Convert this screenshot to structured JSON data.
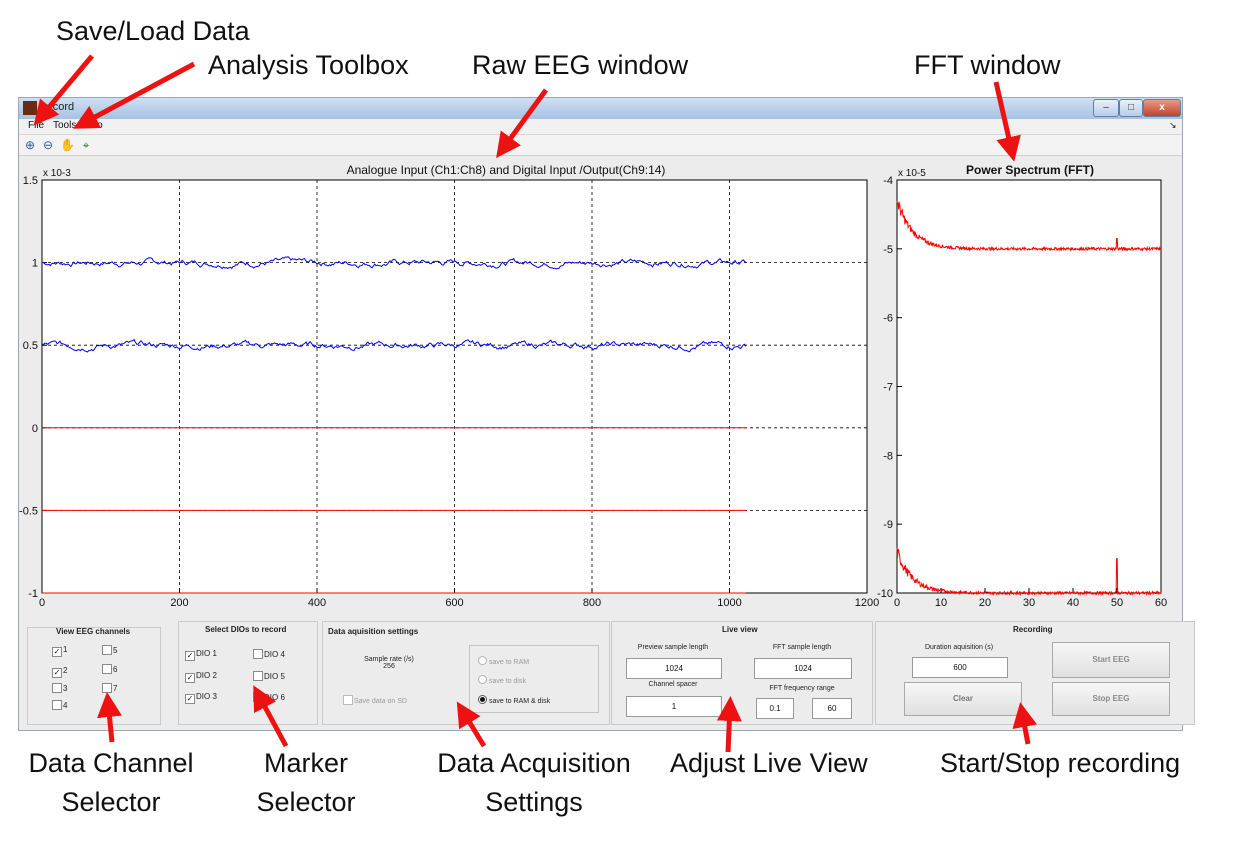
{
  "annotations": {
    "save_load": "Save/Load Data",
    "analysis_toolbox": "Analysis Toolbox",
    "raw_eeg": "Raw EEG window",
    "fft_window": "FFT window",
    "data_channel_line1": "Data Channel",
    "data_channel_line2": "Selector",
    "marker_line1": "Marker",
    "marker_line2": "Selector",
    "acq_line1": "Data Acquisition",
    "acq_line2": "Settings",
    "live_view": "Adjust Live View",
    "start_stop": "Start/Stop recording"
  },
  "window": {
    "title": "record",
    "minimize": "–",
    "maximize": "□",
    "close": "x"
  },
  "menu": {
    "file": "File",
    "tools": "Tools",
    "info": "Info"
  },
  "toolbar_icons": [
    "zoom-in-icon",
    "zoom-out-icon",
    "pan-hand-icon",
    "data-cursor-icon"
  ],
  "panels": {
    "eeg": {
      "title": "View EEG channels",
      "channels": [
        {
          "label": "1",
          "checked": true
        },
        {
          "label": "2",
          "checked": true
        },
        {
          "label": "3",
          "checked": false
        },
        {
          "label": "4",
          "checked": false
        },
        {
          "label": "5",
          "checked": false
        },
        {
          "label": "6",
          "checked": false
        },
        {
          "label": "7",
          "checked": false
        }
      ]
    },
    "dio": {
      "title": "Select DIOs to record",
      "items": [
        {
          "label": "DIO 1",
          "checked": true
        },
        {
          "label": "DIO 2",
          "checked": true
        },
        {
          "label": "DIO 3",
          "checked": true
        },
        {
          "label": "DIO 4",
          "checked": false
        },
        {
          "label": "DIO 5",
          "checked": false
        },
        {
          "label": "DIO 6",
          "checked": false
        }
      ]
    },
    "acq": {
      "title": "Data aquisition settings",
      "sample_rate_label": "Sample rate (/s)",
      "sample_rate_value": "256",
      "save_sd": "Save data on SD",
      "radio_ram": "save to RAM",
      "radio_disk": "save to disk",
      "radio_both": "save to RAM & disk",
      "selected": "both"
    },
    "live": {
      "title": "Live view",
      "preview_label": "Preview sample length",
      "preview_value": "1024",
      "fft_len_label": "FFT sample length",
      "fft_len_value": "1024",
      "spacer_label": "Channel spacer",
      "spacer_value": "1",
      "fft_range_label": "FFT frequency range",
      "fft_min": "0.1",
      "fft_max": "60"
    },
    "rec": {
      "title": "Recording",
      "duration_label": "Duration aquisition (s)",
      "duration_value": "600",
      "start": "Start EEG",
      "stop": "Stop EEG",
      "clear": "Clear"
    }
  },
  "chart_data": [
    {
      "type": "line",
      "title": "Analogue Input (Ch1:Ch8) and Digital Input /Output(Ch9:14)",
      "xlim": [
        0,
        1200
      ],
      "ylim": [
        -1,
        1.5
      ],
      "y_exponent": "x 10-3",
      "xticks": [
        "0",
        "200",
        "400",
        "600",
        "800",
        "1000",
        "1200"
      ],
      "yticks": [
        "-1",
        "-0.5",
        "0",
        "0.5",
        "1",
        "1.5"
      ],
      "grid": true,
      "series": [
        {
          "color": "#0000ff",
          "kind": "noise",
          "baseline": 1.0,
          "x": [
            0,
            1024
          ],
          "amp": 0.015
        },
        {
          "color": "#0000ff",
          "kind": "noise",
          "baseline": 0.5,
          "x": [
            0,
            1024
          ],
          "amp": 0.015
        },
        {
          "color": "#ff0000",
          "kind": "flat",
          "baseline": 0.0,
          "x": [
            0,
            1024
          ]
        },
        {
          "color": "#ff0000",
          "kind": "flat",
          "baseline": -0.5,
          "x": [
            0,
            1024
          ]
        },
        {
          "color": "#ff0000",
          "kind": "flat",
          "baseline": -1.0,
          "x": [
            0,
            1024
          ]
        }
      ]
    },
    {
      "type": "line",
      "title": "Power Spectrum (FFT)",
      "xlim": [
        0,
        60
      ],
      "ylim": [
        -10,
        -4
      ],
      "y_exponent": "x 10-5",
      "xticks": [
        "0",
        "10",
        "20",
        "30",
        "40",
        "50",
        "60"
      ],
      "yticks": [
        "-10",
        "-9",
        "-8",
        "-7",
        "-6",
        "-5",
        "-4"
      ],
      "grid": false,
      "series": [
        {
          "color": "#ff0000",
          "kind": "spectrum",
          "baseline": -5.0,
          "peak": -4.3,
          "spike_at": 50,
          "spike_height": -4.85
        },
        {
          "color": "#ff0000",
          "kind": "spectrum",
          "baseline": -10.0,
          "peak": -9.4,
          "spike_at": 50,
          "spike_height": -9.5
        }
      ]
    }
  ]
}
